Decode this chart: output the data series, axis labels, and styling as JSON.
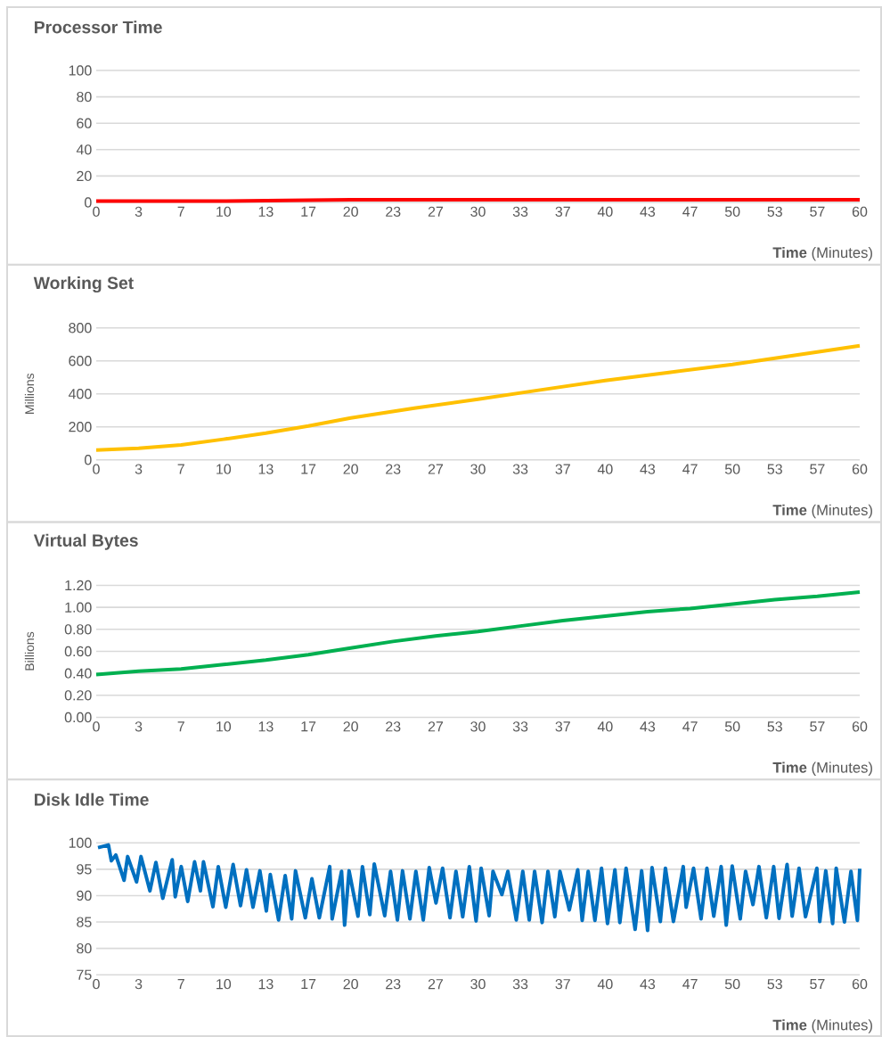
{
  "chart_data": [
    {
      "type": "line",
      "title": "Processor Time",
      "xlabel": "**Time** (Minutes)",
      "xlim": [
        0,
        60
      ],
      "ylim": [
        0,
        100
      ],
      "yticks": [
        0,
        20,
        40,
        60,
        80,
        100
      ],
      "grid": "y",
      "xticks": [
        0,
        {
          "value": 3.33,
          "label": "3"
        },
        {
          "value": 6.67,
          "label": "7"
        },
        10,
        {
          "value": 13.33,
          "label": "13"
        },
        {
          "value": 16.67,
          "label": "17"
        },
        20,
        {
          "value": 23.33,
          "label": "23"
        },
        {
          "value": 26.67,
          "label": "27"
        },
        30,
        {
          "value": 33.33,
          "label": "33"
        },
        {
          "value": 36.67,
          "label": "37"
        },
        40,
        {
          "value": 43.33,
          "label": "43"
        },
        {
          "value": 46.67,
          "label": "47"
        },
        50,
        {
          "value": 53.33,
          "label": "53"
        },
        {
          "value": 56.67,
          "label": "57"
        },
        60
      ],
      "x": [
        0,
        5,
        10,
        15,
        20,
        25,
        30,
        35,
        40,
        45,
        50,
        55,
        60
      ],
      "series": [
        {
          "color": "#ff0000",
          "values": [
            1,
            1,
            1,
            1.5,
            2,
            2,
            2,
            2,
            2,
            2,
            2,
            2,
            2
          ]
        }
      ]
    },
    {
      "type": "line",
      "title": "Working Set",
      "xlabel": "**Time** (Minutes)",
      "ylabel": "Millions",
      "xlim": [
        0,
        60
      ],
      "ylim": [
        0,
        800
      ],
      "yticks": [
        0,
        200,
        400,
        600,
        800
      ],
      "grid": "y",
      "xticks": [
        0,
        {
          "value": 3.33,
          "label": "3"
        },
        {
          "value": 6.67,
          "label": "7"
        },
        10,
        {
          "value": 13.33,
          "label": "13"
        },
        {
          "value": 16.67,
          "label": "17"
        },
        20,
        {
          "value": 23.33,
          "label": "23"
        },
        {
          "value": 26.67,
          "label": "27"
        },
        30,
        {
          "value": 33.33,
          "label": "33"
        },
        {
          "value": 36.67,
          "label": "37"
        },
        40,
        {
          "value": 43.33,
          "label": "43"
        },
        {
          "value": 46.67,
          "label": "47"
        },
        50,
        {
          "value": 53.33,
          "label": "53"
        },
        {
          "value": 56.67,
          "label": "57"
        },
        60
      ],
      "x": [
        0,
        3.33,
        6.67,
        10,
        13.33,
        16.67,
        20,
        25,
        30,
        35,
        40,
        45,
        50,
        55,
        60
      ],
      "series": [
        {
          "color": "#ffc000",
          "values": [
            60,
            70,
            90,
            125,
            162,
            205,
            254,
            313,
            368,
            425,
            481,
            530,
            578,
            635,
            692
          ]
        }
      ]
    },
    {
      "type": "line",
      "title": "Virtual Bytes",
      "xlabel": "**Time** (Minutes)",
      "ylabel": "Billions",
      "xlim": [
        0,
        60
      ],
      "ylim": [
        0,
        1.2
      ],
      "grid": "y",
      "yticks": [
        {
          "value": 0,
          "label": "0.00"
        },
        {
          "value": 0.2,
          "label": "0.20"
        },
        {
          "value": 0.4,
          "label": "0.40"
        },
        {
          "value": 0.6,
          "label": "0.60"
        },
        {
          "value": 0.8,
          "label": "0.80"
        },
        {
          "value": 1.0,
          "label": "1.00"
        },
        {
          "value": 1.2,
          "label": "1.20"
        }
      ],
      "xticks": [
        0,
        {
          "value": 3.33,
          "label": "3"
        },
        {
          "value": 6.67,
          "label": "7"
        },
        10,
        {
          "value": 13.33,
          "label": "13"
        },
        {
          "value": 16.67,
          "label": "17"
        },
        20,
        {
          "value": 23.33,
          "label": "23"
        },
        {
          "value": 26.67,
          "label": "27"
        },
        30,
        {
          "value": 33.33,
          "label": "33"
        },
        {
          "value": 36.67,
          "label": "37"
        },
        40,
        {
          "value": 43.33,
          "label": "43"
        },
        {
          "value": 46.67,
          "label": "47"
        },
        50,
        {
          "value": 53.33,
          "label": "53"
        },
        {
          "value": 56.67,
          "label": "57"
        },
        60
      ],
      "x": [
        0,
        3.33,
        6.67,
        10,
        13.33,
        16.67,
        20,
        23.33,
        26.67,
        30,
        33.33,
        36.67,
        40,
        43.33,
        46.67,
        50,
        53.33,
        56.67,
        60
      ],
      "series": [
        {
          "color": "#00b050",
          "values": [
            0.39,
            0.42,
            0.44,
            0.48,
            0.52,
            0.57,
            0.63,
            0.69,
            0.74,
            0.78,
            0.83,
            0.88,
            0.92,
            0.96,
            0.99,
            1.03,
            1.07,
            1.1,
            1.14
          ]
        }
      ]
    },
    {
      "type": "line",
      "title": "Disk Idle Time",
      "xlabel": "**Time** (Minutes)",
      "xlim": [
        0,
        60
      ],
      "ylim": [
        75,
        100
      ],
      "yticks": [
        75,
        80,
        85,
        90,
        95,
        100
      ],
      "grid": "y",
      "xticks": [
        0,
        {
          "value": 3.33,
          "label": "3"
        },
        {
          "value": 6.67,
          "label": "7"
        },
        10,
        {
          "value": 13.33,
          "label": "13"
        },
        {
          "value": 16.67,
          "label": "17"
        },
        20,
        {
          "value": 23.33,
          "label": "23"
        },
        {
          "value": 26.67,
          "label": "27"
        },
        30,
        {
          "value": 33.33,
          "label": "33"
        },
        {
          "value": 36.67,
          "label": "37"
        },
        40,
        {
          "value": 43.33,
          "label": "43"
        },
        {
          "value": 46.67,
          "label": "47"
        },
        50,
        {
          "value": 53.33,
          "label": "53"
        },
        {
          "value": 56.67,
          "label": "57"
        },
        60
      ],
      "x": [
        0.14,
        0.96,
        1.19,
        1.54,
        2.19,
        2.47,
        3.17,
        3.52,
        4.22,
        4.69,
        5.23,
        5.97,
        6.21,
        6.68,
        7.19,
        7.73,
        8.19,
        8.43,
        9.17,
        9.59,
        10.18,
        10.76,
        11.34,
        11.81,
        12.32,
        12.86,
        13.37,
        13.68,
        14.33,
        14.85,
        15.36,
        15.66,
        16.43,
        16.95,
        17.53,
        18.35,
        18.54,
        19.28,
        19.52,
        19.87,
        20.57,
        20.92,
        21.5,
        21.85,
        22.67,
        23.13,
        23.67,
        24.07,
        24.65,
        25.12,
        25.7,
        26.17,
        26.7,
        27.22,
        27.8,
        28.27,
        28.8,
        29.32,
        29.85,
        30.25,
        30.88,
        31.18,
        31.88,
        32.35,
        33.01,
        33.52,
        34.03,
        34.45,
        35.04,
        35.5,
        36.04,
        36.44,
        37.18,
        37.84,
        38.19,
        38.66,
        39.19,
        39.71,
        40.18,
        40.76,
        41.15,
        41.64,
        42.35,
        42.86,
        43.33,
        43.68,
        44.33,
        44.73,
        45.36,
        46.13,
        46.36,
        46.94,
        47.53,
        47.99,
        48.53,
        49.11,
        49.51,
        49.98,
        50.61,
        51.03,
        51.61,
        52.08,
        52.66,
        53.24,
        53.66,
        54.29,
        54.69,
        55.23,
        55.74,
        56.63,
        56.86,
        57.33,
        57.87,
        58.15,
        58.8,
        59.31,
        59.82,
        60
      ],
      "series": [
        {
          "color": "#0070c0",
          "values": [
            99.1,
            99.6,
            96.6,
            97.7,
            92.9,
            97.4,
            92.6,
            97.4,
            90.9,
            96.3,
            89.5,
            96.8,
            89.8,
            95.5,
            88.9,
            96.4,
            90.9,
            96.4,
            87.9,
            95.5,
            87.8,
            95.9,
            88.1,
            94.9,
            87.8,
            94.7,
            87.1,
            94.0,
            85.4,
            93.8,
            85.6,
            94.7,
            85.8,
            93.2,
            85.8,
            95.5,
            85.6,
            94.6,
            84.4,
            94.7,
            86.1,
            95.5,
            86.4,
            96.0,
            86.2,
            94.6,
            85.4,
            94.7,
            85.6,
            94.6,
            85.4,
            95.3,
            88.6,
            95.2,
            85.8,
            94.6,
            86.0,
            95.5,
            85.2,
            95.2,
            86.2,
            94.6,
            90.2,
            94.6,
            85.4,
            94.6,
            85.4,
            94.6,
            84.9,
            94.6,
            86.0,
            94.6,
            87.3,
            94.9,
            85.3,
            94.6,
            85.3,
            95.2,
            84.7,
            94.9,
            84.9,
            95.2,
            83.6,
            94.7,
            83.4,
            95.3,
            85.1,
            95.2,
            85.1,
            95.5,
            87.8,
            95.2,
            85.6,
            95.2,
            86.1,
            95.5,
            84.4,
            95.6,
            85.6,
            94.6,
            88.3,
            95.5,
            85.8,
            95.5,
            85.7,
            95.9,
            86.1,
            95.2,
            86.0,
            95.2,
            85.1,
            94.7,
            84.7,
            95.2,
            85.0,
            94.6,
            85.3,
            95.1
          ]
        }
      ]
    }
  ]
}
